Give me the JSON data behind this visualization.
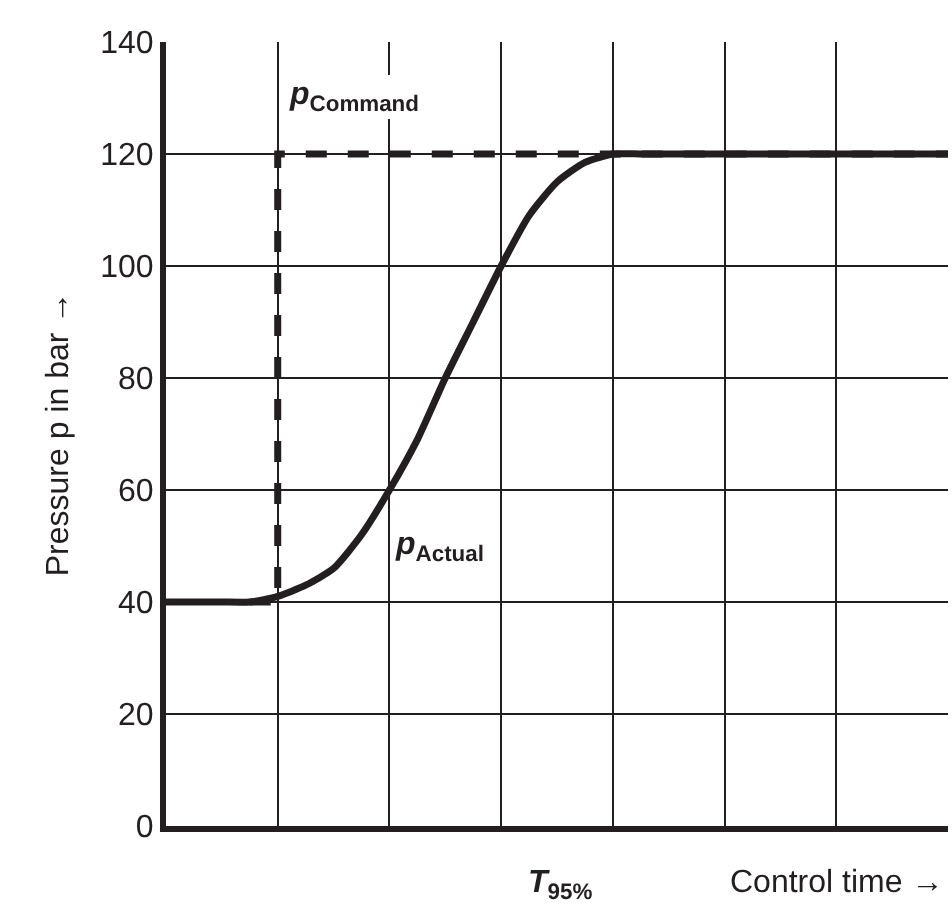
{
  "chart_data": {
    "type": "line",
    "xlabel": "Control time →",
    "ylabel": "Pressure p in bar →",
    "categories": [
      null,
      null,
      null,
      null,
      null,
      null,
      null,
      null,
      null,
      null,
      null,
      null,
      null,
      null,
      null,
      null,
      null,
      null,
      null,
      null,
      null,
      null,
      null,
      null,
      null,
      null,
      null,
      null,
      null
    ],
    "series": [
      {
        "name": "p$_{Command}$",
        "type": "step",
        "line_style": "dashed",
        "color": "#231f20",
        "values": [
          null,
          null,
          null,
          40,
          120,
          120,
          120,
          120,
          120,
          120,
          120,
          120,
          120,
          120,
          120,
          120,
          120,
          120,
          120,
          120,
          120,
          120,
          120,
          120,
          120,
          120,
          120,
          120,
          120
        ]
      },
      {
        "name": "p$_{Actual}$",
        "type": "line",
        "line_style": "solid",
        "color": "#231f20",
        "values": [
          40,
          40,
          40,
          40,
          41,
          43,
          46,
          52,
          60,
          69,
          80,
          90,
          100,
          109,
          115,
          118.5,
          120,
          120,
          120,
          120,
          120,
          120,
          120,
          120,
          120,
          120,
          120,
          120,
          120
        ]
      }
    ],
    "annotations": [
      "T$_{95%}$"
    ],
    "ylim": [
      0,
      140
    ],
    "yticks": [
      0,
      20,
      40,
      60,
      80,
      100,
      120,
      140
    ],
    "grid": true,
    "legend": false,
    "marker": "none"
  }
}
